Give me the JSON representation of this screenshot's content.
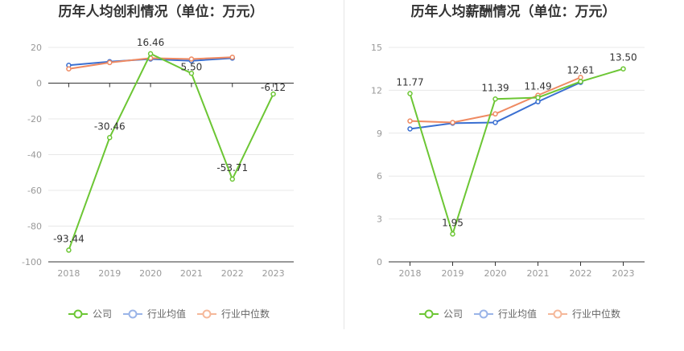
{
  "colors": {
    "company": "#6cc634",
    "industry_avg": "#3a6fd1",
    "industry_median": "#ef8a62",
    "legend_avg": "#9ab4e8",
    "legend_median": "#f5b89a",
    "grid": "#e8e8e8",
    "axis": "#333333"
  },
  "legend": {
    "company": "公司",
    "industry_avg": "行业均值",
    "industry_median": "行业中位数"
  },
  "chart_data": [
    {
      "type": "line",
      "title": "历年人均创利情况（单位：万元）",
      "categories": [
        "2018",
        "2019",
        "2020",
        "2021",
        "2022",
        "2023"
      ],
      "ylim": [
        -100,
        20
      ],
      "yticks": [
        20,
        0,
        -20,
        -40,
        -60,
        -80,
        -100
      ],
      "grid": true,
      "legend_position": "bottom",
      "series": [
        {
          "name": "公司",
          "values": [
            -93.44,
            -30.46,
            16.46,
            5.5,
            -53.71,
            -6.12
          ],
          "labels": [
            "-93.44",
            "-30.46",
            "16.46",
            "5.50",
            "-53.71",
            "-6.12"
          ]
        },
        {
          "name": "行业均值",
          "values": [
            10,
            12,
            13.5,
            12.5,
            14,
            null
          ]
        },
        {
          "name": "行业中位数",
          "values": [
            8,
            11.5,
            14,
            13.5,
            14.5,
            null
          ]
        }
      ]
    },
    {
      "type": "line",
      "title": "历年人均薪酬情况（单位：万元）",
      "categories": [
        "2018",
        "2019",
        "2020",
        "2021",
        "2022",
        "2023"
      ],
      "ylim": [
        0,
        15
      ],
      "yticks": [
        15,
        12,
        9,
        6,
        3,
        0
      ],
      "grid": true,
      "legend_position": "bottom",
      "series": [
        {
          "name": "公司",
          "values": [
            11.77,
            1.95,
            11.39,
            11.49,
            12.61,
            13.5
          ],
          "labels": [
            "11.77",
            "1.95",
            "11.39",
            "11.49",
            "12.61",
            "13.50"
          ]
        },
        {
          "name": "行业均值",
          "values": [
            9.3,
            9.7,
            9.75,
            11.2,
            12.55,
            null
          ]
        },
        {
          "name": "行业中位数",
          "values": [
            9.85,
            9.75,
            10.35,
            11.65,
            12.9,
            null
          ]
        }
      ]
    }
  ]
}
